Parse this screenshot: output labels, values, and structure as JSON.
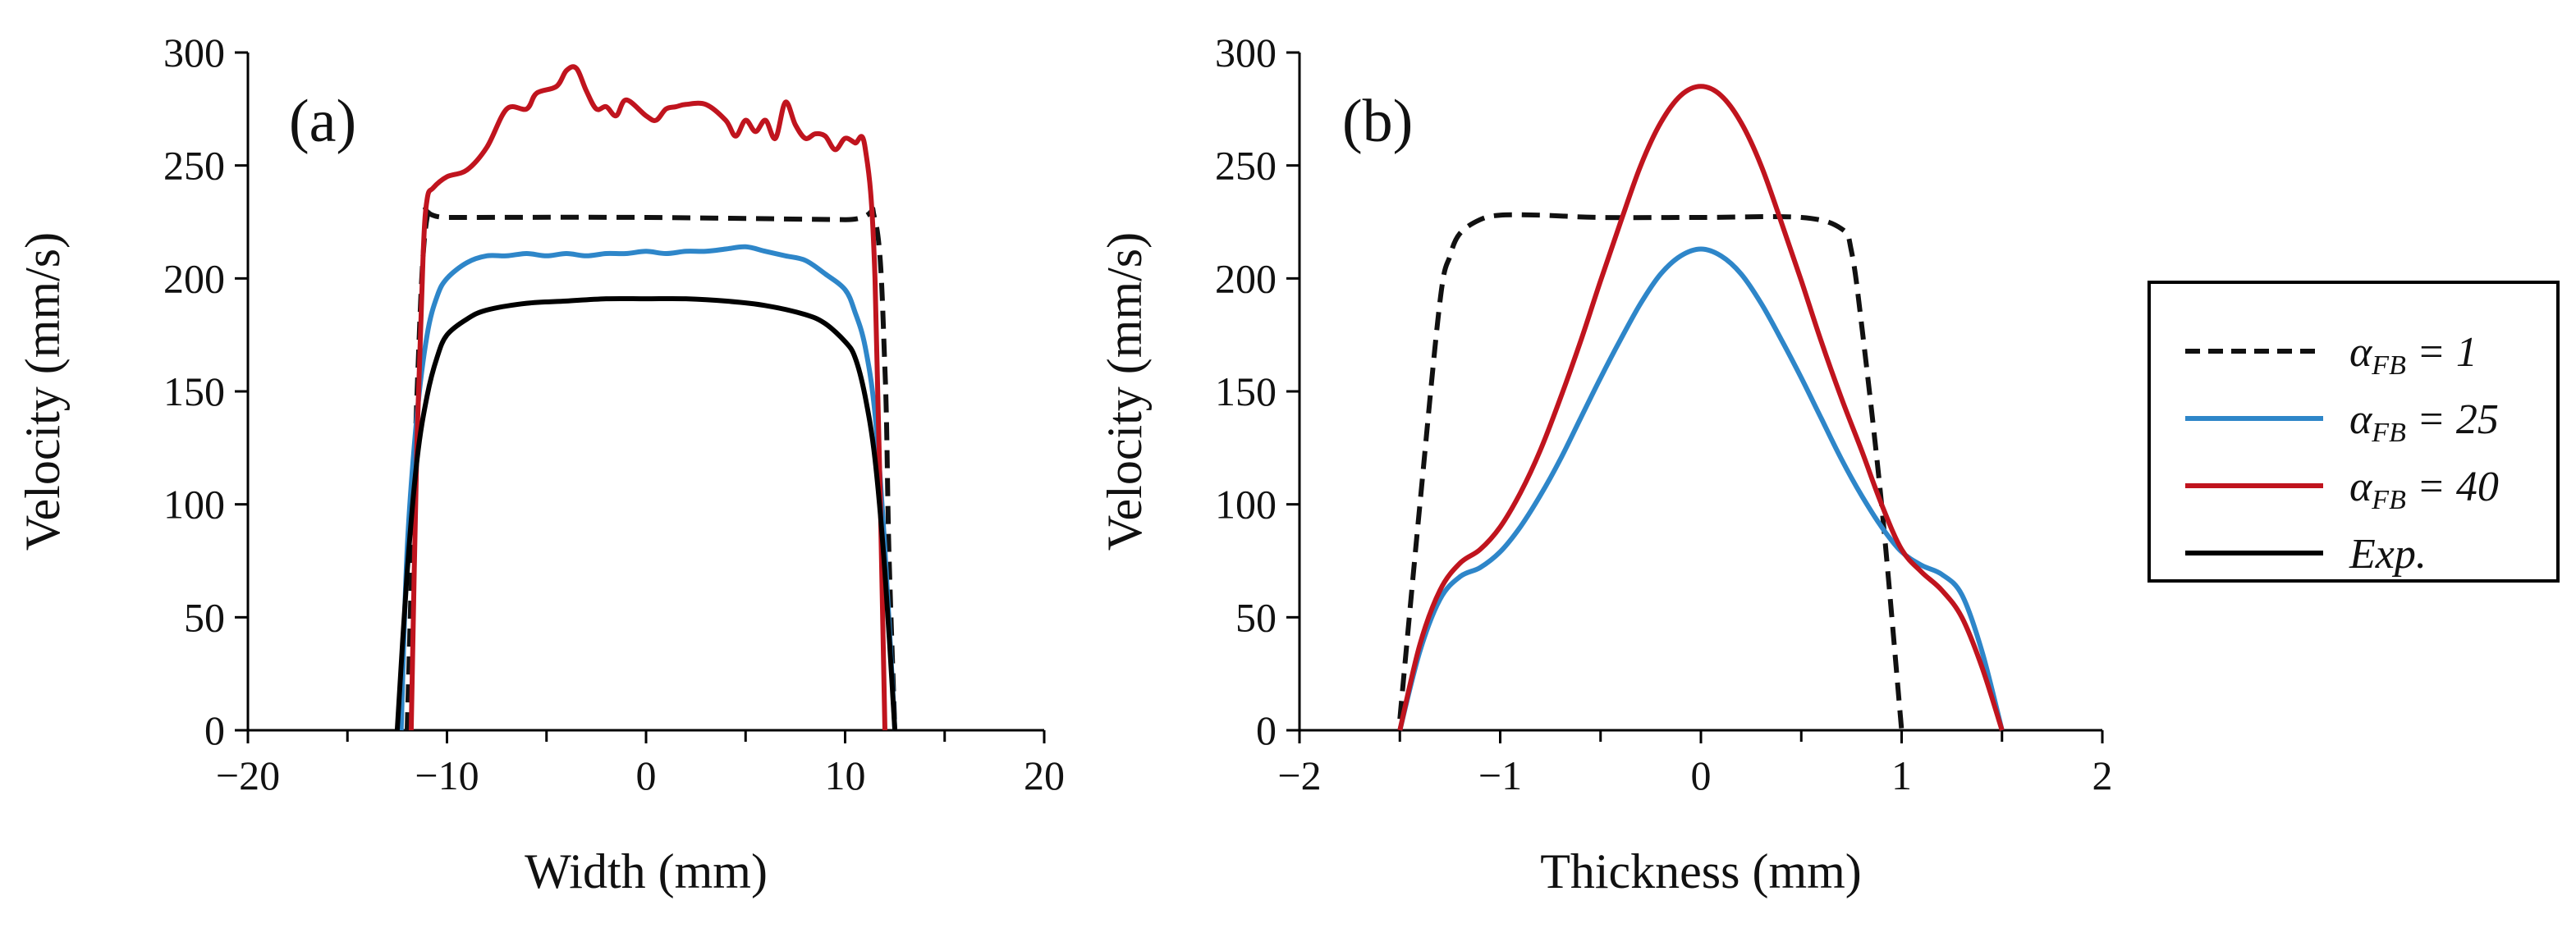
{
  "colors": {
    "dashed": "#111111",
    "blue": "#2E86C9",
    "red": "#C0141E",
    "exp": "#000000",
    "axis": "#000000"
  },
  "legend": {
    "entries": [
      {
        "key": "a1",
        "label_base": "α",
        "label_sub": "FB",
        "label_rest": " = 1",
        "color": "#111111",
        "dash": true
      },
      {
        "key": "a25",
        "label_base": "α",
        "label_sub": "FB",
        "label_rest": " = 25",
        "color": "#2E86C9",
        "dash": false
      },
      {
        "key": "a40",
        "label_base": "α",
        "label_sub": "FB",
        "label_rest": " = 40",
        "color": "#C0141E",
        "dash": false
      },
      {
        "key": "exp",
        "label_base": "Exp.",
        "label_sub": "",
        "label_rest": "",
        "color": "#000000",
        "dash": false
      }
    ]
  },
  "chart_data": [
    {
      "type": "line",
      "panel_label": "(a)",
      "xlabel": "Width (mm)",
      "ylabel": "Velocity (mm/s)",
      "xlim": [
        -20,
        20
      ],
      "ylim": [
        0,
        300
      ],
      "xticks": [
        -20,
        -10,
        0,
        10,
        20
      ],
      "xtick_labels": [
        "−20",
        "−10",
        "0",
        "10",
        "20"
      ],
      "yticks": [
        0,
        50,
        100,
        150,
        200,
        250,
        300
      ],
      "ytick_labels": [
        "0",
        "50",
        "100",
        "150",
        "200",
        "250",
        "300"
      ],
      "series": [
        {
          "key": "a1",
          "name": "αFB = 1",
          "dash": true,
          "x": [
            -12.0,
            -11.5,
            -11.0,
            -10.0,
            0.0,
            10.0,
            11.5,
            12.0,
            12.2,
            12.5
          ],
          "y": [
            0,
            150,
            227,
            227,
            227,
            226,
            226,
            160,
            80,
            0
          ]
        },
        {
          "key": "a25",
          "name": "αFB = 25",
          "dash": false,
          "x": [
            -12.3,
            -12.0,
            -11.5,
            -11.0,
            -10.5,
            -10.0,
            -9.0,
            -8.0,
            -7.0,
            -6.0,
            -5.0,
            -4.0,
            -3.0,
            -2.0,
            -1.0,
            0.0,
            1.0,
            2.0,
            3.0,
            4.0,
            5.0,
            6.0,
            7.0,
            8.0,
            9.0,
            10.0,
            10.5,
            11.0,
            11.5,
            12.0,
            12.5
          ],
          "y": [
            0,
            80,
            140,
            175,
            192,
            200,
            207,
            210,
            210,
            211,
            210,
            211,
            210,
            211,
            211,
            212,
            211,
            212,
            212,
            213,
            214,
            212,
            210,
            208,
            202,
            195,
            185,
            170,
            140,
            80,
            0
          ]
        },
        {
          "key": "a40",
          "name": "αFB = 40",
          "dash": false,
          "x": [
            -11.8,
            -11.5,
            -11.2,
            -11.0,
            -10.7,
            -10.0,
            -9.0,
            -8.0,
            -7.0,
            -6.0,
            -5.5,
            -4.5,
            -4.0,
            -3.5,
            -3.0,
            -2.5,
            -2.0,
            -1.5,
            -1.0,
            0.0,
            0.5,
            1.0,
            1.5,
            2.0,
            3.0,
            4.0,
            4.5,
            5.0,
            5.5,
            6.0,
            6.5,
            7.0,
            7.5,
            8.0,
            8.5,
            9.0,
            9.5,
            10.0,
            10.5,
            11.0,
            11.5,
            12.0
          ],
          "y": [
            0,
            130,
            210,
            235,
            240,
            245,
            248,
            258,
            275,
            275,
            282,
            285,
            292,
            293,
            283,
            275,
            276,
            272,
            279,
            272,
            270,
            275,
            276,
            277,
            277,
            270,
            263,
            270,
            265,
            270,
            262,
            278,
            268,
            262,
            264,
            263,
            257,
            262,
            260,
            258,
            200,
            0
          ]
        },
        {
          "key": "exp",
          "name": "Exp.",
          "dash": false,
          "x": [
            -12.5,
            -12.0,
            -11.5,
            -11.0,
            -10.5,
            -10.0,
            -9.0,
            -8.0,
            -6.0,
            -4.0,
            -2.0,
            0.0,
            2.0,
            4.0,
            6.0,
            8.0,
            9.0,
            10.0,
            10.5,
            11.0,
            11.5,
            12.0,
            12.5
          ],
          "y": [
            0,
            70,
            120,
            148,
            165,
            175,
            182,
            186,
            189,
            190,
            191,
            191,
            191,
            190,
            188,
            184,
            180,
            172,
            165,
            148,
            120,
            70,
            0
          ]
        }
      ]
    },
    {
      "type": "line",
      "panel_label": "(b)",
      "xlabel": "Thickness (mm)",
      "ylabel": "Velocity (mm/s)",
      "xlim": [
        -2,
        2
      ],
      "ylim": [
        0,
        300
      ],
      "xticks": [
        -2,
        -1,
        0,
        1,
        2
      ],
      "xtick_labels": [
        "−2",
        "−1",
        "0",
        "1",
        "2"
      ],
      "yticks": [
        0,
        50,
        100,
        150,
        200,
        250,
        300
      ],
      "ytick_labels": [
        "0",
        "50",
        "100",
        "150",
        "200",
        "250",
        "300"
      ],
      "series": [
        {
          "key": "a1",
          "name": "αFB = 1",
          "dash": true,
          "x": [
            -1.5,
            -1.4,
            -1.3,
            -1.25,
            -1.2,
            -1.1,
            -1.0,
            -0.8,
            -0.5,
            0.0,
            0.5,
            0.7,
            0.75,
            0.8,
            0.9,
            1.0
          ],
          "y": [
            5,
            100,
            190,
            210,
            220,
            226,
            228,
            228,
            227,
            227,
            227,
            222,
            212,
            180,
            100,
            0
          ]
        },
        {
          "key": "a25",
          "name": "αFB = 25",
          "dash": false,
          "x": [
            -1.5,
            -1.4,
            -1.3,
            -1.2,
            -1.1,
            -1.0,
            -0.9,
            -0.8,
            -0.7,
            -0.6,
            -0.5,
            -0.4,
            -0.3,
            -0.2,
            -0.1,
            0.0,
            0.1,
            0.2,
            0.3,
            0.4,
            0.5,
            0.6,
            0.7,
            0.8,
            0.9,
            1.0,
            1.1,
            1.2,
            1.3,
            1.4,
            1.5
          ],
          "y": [
            0,
            35,
            58,
            68,
            72,
            79,
            90,
            104,
            120,
            138,
            156,
            173,
            189,
            202,
            210,
            213,
            210,
            202,
            189,
            173,
            156,
            138,
            120,
            104,
            90,
            79,
            73,
            69,
            60,
            35,
            0
          ]
        },
        {
          "key": "a40",
          "name": "αFB = 40",
          "dash": false,
          "x": [
            -1.5,
            -1.4,
            -1.3,
            -1.2,
            -1.1,
            -1.0,
            -0.9,
            -0.8,
            -0.7,
            -0.6,
            -0.5,
            -0.4,
            -0.3,
            -0.2,
            -0.1,
            0.0,
            0.1,
            0.2,
            0.3,
            0.4,
            0.5,
            0.6,
            0.7,
            0.8,
            0.9,
            1.0,
            1.1,
            1.2,
            1.3,
            1.4,
            1.5
          ],
          "y": [
            0,
            38,
            62,
            74,
            80,
            90,
            105,
            124,
            147,
            172,
            199,
            225,
            250,
            269,
            281,
            285,
            281,
            269,
            250,
            225,
            199,
            172,
            147,
            124,
            100,
            80,
            70,
            62,
            50,
            28,
            0
          ]
        }
      ]
    }
  ]
}
